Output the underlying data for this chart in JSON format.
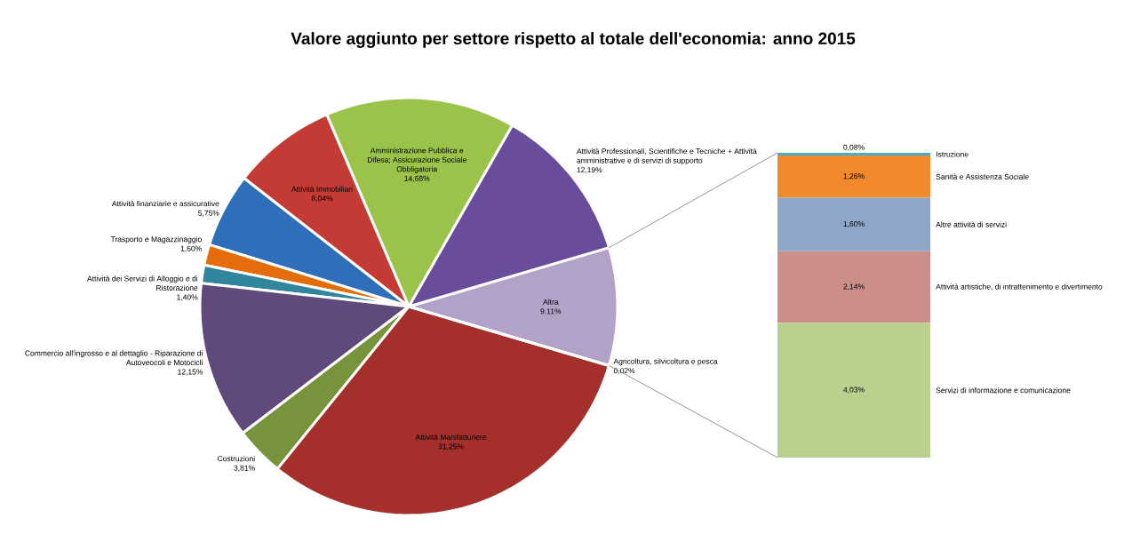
{
  "chart_data": [
    {
      "type": "pie",
      "title": "Valore aggiunto per settore rispetto al totale dell'economia: anno 2015",
      "categories": [
        "Altra",
        "Attività Professionali, Scientifiche e Tecniche + Attività amministrative e di servizi di supporto",
        "Amministrazione Pubblica e Difesa; Assicurazione Sociale Obbligatoria",
        "Attività Immobiliari",
        "Attività finanziarie e assicurative",
        "Trasporto e Magazzinaggio",
        "Attività dei Servizi di Alloggio e di Ristorazione",
        "Commercio all'ingrosso e al dettaglio - Riparazione di Autoveocoli e  Motocicli",
        "Costruzioni",
        "Attività Manifatturiere",
        "Agricoltura, silvicoltura e pesca"
      ],
      "values": [
        9.11,
        12.19,
        14.68,
        8.04,
        5.75,
        1.6,
        1.4,
        12.15,
        3.81,
        31.25,
        0.02
      ],
      "value_labels": [
        "9.11%",
        "12,19%",
        "14,68%",
        "8,04%",
        "5,75%",
        "1,60%",
        "1,40%",
        "12,15%",
        "3,81%",
        "31,25%",
        "0,02%"
      ],
      "colors": [
        "#b3a2c7",
        "#6a4c9c",
        "#9bc34a",
        "#c43b35",
        "#2f6fba",
        "#e46c0a",
        "#31859c",
        "#604a7b",
        "#77933c",
        "#a5302b",
        "#9dc3e6"
      ]
    },
    {
      "type": "bar",
      "stacked": true,
      "categories": [
        null
      ],
      "series": [
        {
          "name": "Servizi di informazione e comunicazione",
          "color": "#b9d08f",
          "values": [
            4.03
          ],
          "value_labels": [
            "4,03%"
          ]
        },
        {
          "name": "Attività artistiche, di intrattenimento e divertimento",
          "color": "#cc8e8b",
          "values": [
            2.14
          ],
          "value_labels": [
            "2,14%"
          ]
        },
        {
          "name": "Altre attività di servizi",
          "color": "#8fa6c8",
          "values": [
            1.6
          ],
          "value_labels": [
            "1,60%"
          ]
        },
        {
          "name": "Sanità e Assistenza Sociale",
          "color": "#f08a2c",
          "values": [
            1.26
          ],
          "value_labels": [
            "1,26%"
          ]
        },
        {
          "name": "Istruzione",
          "color": "#4bacc6",
          "values": [
            0.08
          ],
          "value_labels": [
            "0,08%"
          ]
        }
      ]
    }
  ]
}
